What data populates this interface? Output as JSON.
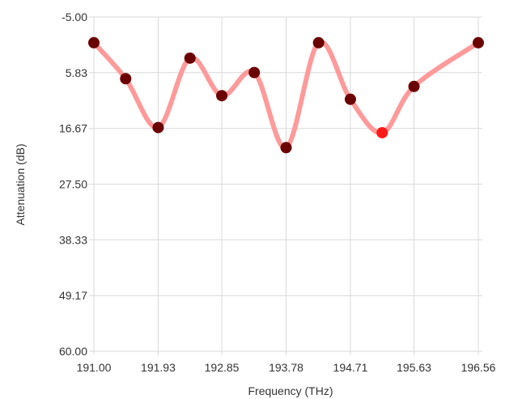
{
  "chart_data": {
    "type": "line",
    "title": "",
    "xlabel": "Frequency (THz)",
    "ylabel": "Attenuation (dB)",
    "x_ticks": [
      "191.00",
      "191.93",
      "192.85",
      "193.78",
      "194.71",
      "195.63",
      "196.56"
    ],
    "y_ticks": [
      "-5.00",
      "5.83",
      "16.67",
      "27.50",
      "38.33",
      "49.17",
      "60.00"
    ],
    "xlim": [
      191.0,
      196.56
    ],
    "ylim": [
      -5.0,
      60.0
    ],
    "y_inverted": true,
    "grid": true,
    "series": [
      {
        "color": "#ff9a9a",
        "points": [
          {
            "x": 191.0,
            "y": 0.0
          },
          {
            "x": 191.46,
            "y": 7.0
          },
          {
            "x": 191.93,
            "y": 16.5
          },
          {
            "x": 192.39,
            "y": 3.0
          },
          {
            "x": 192.85,
            "y": 10.3
          },
          {
            "x": 193.32,
            "y": 5.8
          },
          {
            "x": 193.78,
            "y": 20.4
          },
          {
            "x": 194.25,
            "y": 0.0
          },
          {
            "x": 194.71,
            "y": 11.0
          },
          {
            "x": 195.17,
            "y": 17.5,
            "highlight": true
          },
          {
            "x": 195.63,
            "y": 8.5
          },
          {
            "x": 196.56,
            "y": 0.0
          }
        ]
      }
    ],
    "marker_color": "#6b0000",
    "highlight_color": "#ff1a1a"
  }
}
